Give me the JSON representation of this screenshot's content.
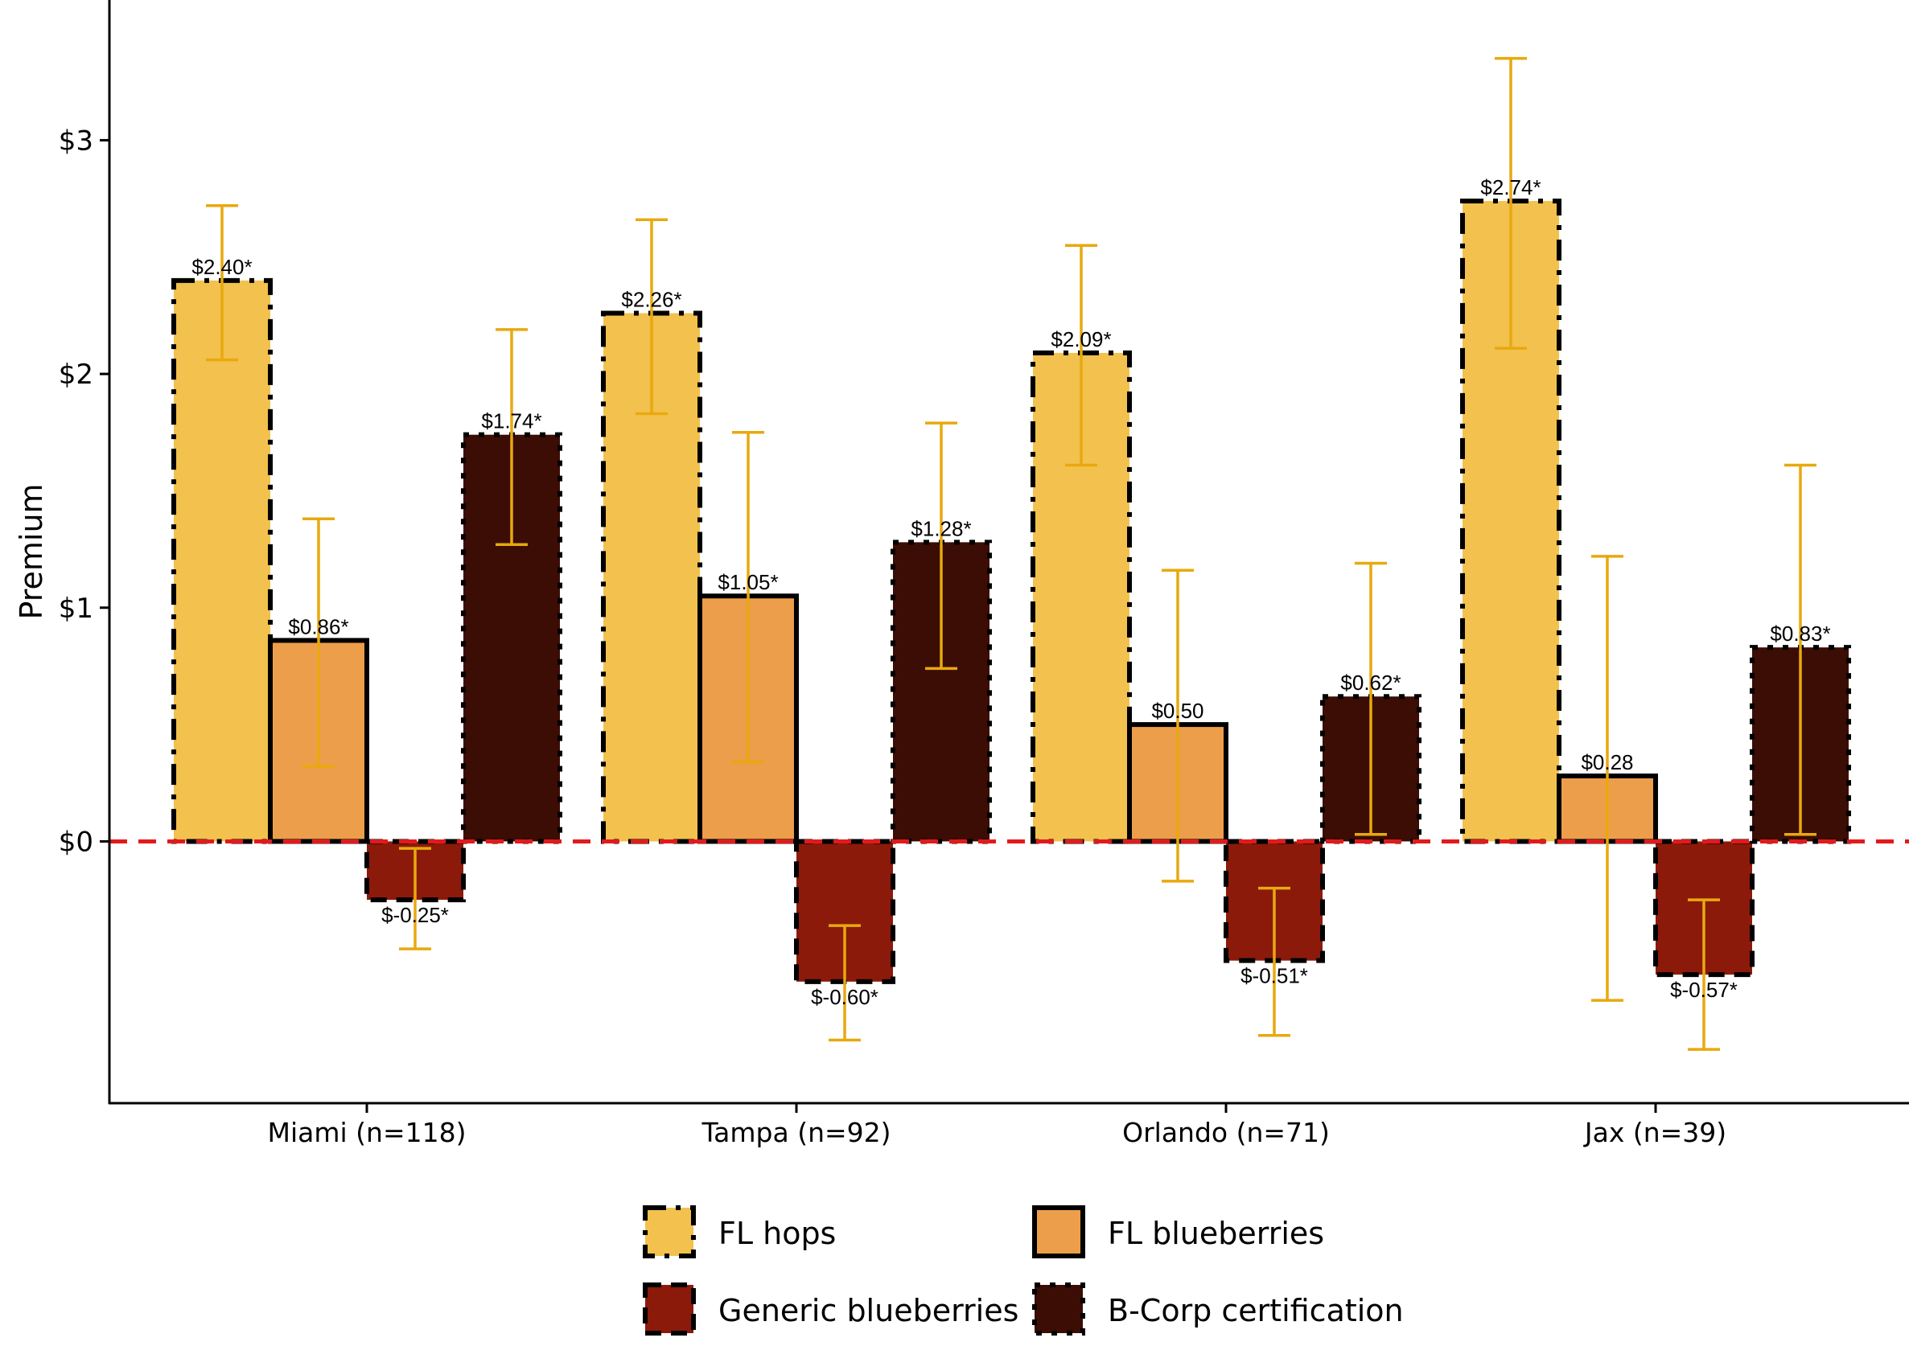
{
  "chart_data": {
    "type": "bar",
    "title": "",
    "xlabel": "",
    "ylabel": "Premium",
    "ylim": [
      -1.12,
      3.6
    ],
    "yticks": [
      0,
      1,
      2,
      3
    ],
    "ytick_labels": [
      "$0",
      "$1",
      "$2",
      "$3"
    ],
    "grid": false,
    "reference_line": {
      "y": 0,
      "style": "dashed",
      "color": "#E31A1C"
    },
    "legend_placement": "bottom",
    "categories": [
      "Miami (n=118)",
      "Tampa (n=92)",
      "Orlando (n=71)",
      "Jax (n=39)"
    ],
    "error_bar_color": "#E8A90E",
    "series": [
      {
        "name": "FL hops",
        "color": "#F2C14E",
        "border": "longdash-dot",
        "values": [
          2.4,
          2.26,
          2.09,
          2.74
        ],
        "labels": [
          "$2.40*",
          "$2.26*",
          "$2.09*",
          "$2.74*"
        ],
        "ci_low": [
          2.06,
          1.83,
          1.61,
          2.11
        ],
        "ci_high": [
          2.72,
          2.66,
          2.55,
          3.35
        ]
      },
      {
        "name": "FL blueberries",
        "color": "#EC9E4B",
        "border": "solid",
        "values": [
          0.86,
          1.05,
          0.5,
          0.28
        ],
        "labels": [
          "$0.86*",
          "$1.05*",
          "$0.50",
          "$0.28"
        ],
        "ci_low": [
          0.32,
          0.34,
          -0.17,
          -0.68
        ],
        "ci_high": [
          1.38,
          1.75,
          1.16,
          1.22
        ]
      },
      {
        "name": "Generic blueberries",
        "color": "#8B1A0A",
        "border": "dashed",
        "values": [
          -0.25,
          -0.6,
          -0.51,
          -0.57
        ],
        "labels": [
          "$-0.25*",
          "$-0.60*",
          "$-0.51*",
          "$-0.57*"
        ],
        "ci_low": [
          -0.46,
          -0.85,
          -0.83,
          -0.89
        ],
        "ci_high": [
          -0.03,
          -0.36,
          -0.2,
          -0.25
        ]
      },
      {
        "name": "B-Corp certification",
        "color": "#3B0D05",
        "border": "dotted",
        "values": [
          1.74,
          1.28,
          0.62,
          0.83
        ],
        "labels": [
          "$1.74*",
          "$1.28*",
          "$0.62*",
          "$0.83*"
        ],
        "ci_low": [
          1.27,
          0.74,
          0.03,
          0.03
        ],
        "ci_high": [
          2.19,
          1.79,
          1.19,
          1.61
        ]
      }
    ]
  }
}
